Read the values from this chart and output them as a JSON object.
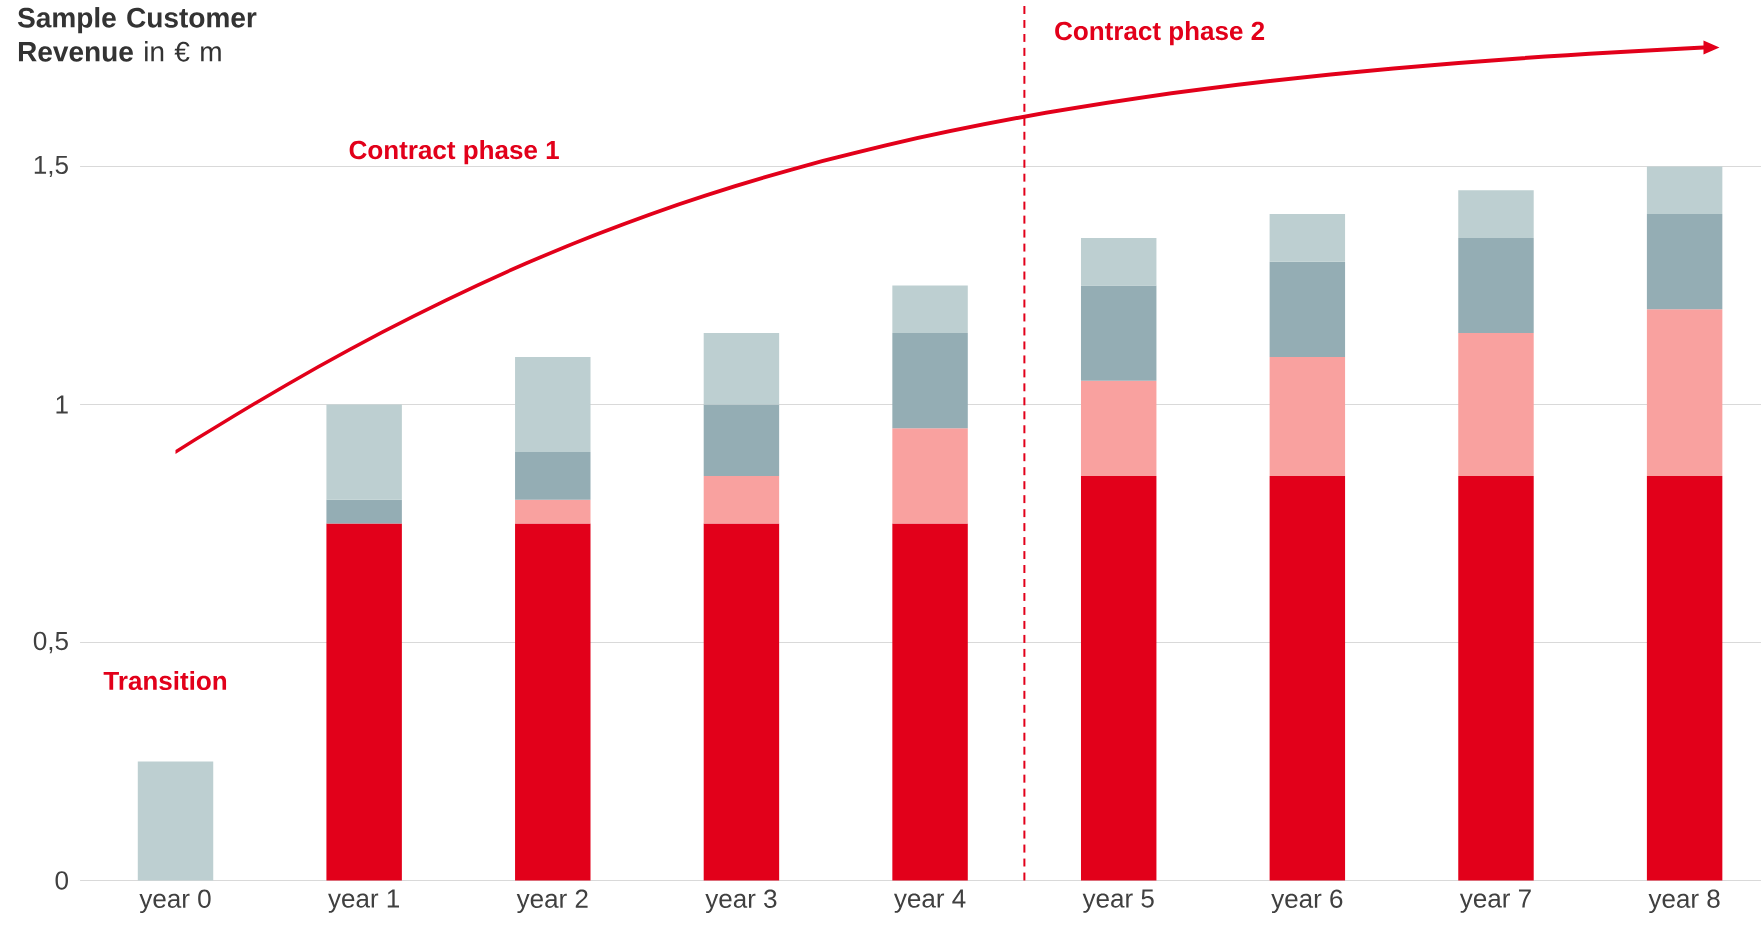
{
  "chart_data": {
    "type": "bar",
    "stacked": true,
    "title": "**Sample Customer Revenue** in € m",
    "categories": [
      "year 0",
      "year 1",
      "year 2",
      "year 3",
      "year 4",
      "year 5",
      "year 6",
      "year 7",
      "year 8"
    ],
    "series": [
      {
        "color": "#e2001a",
        "values": [
          null,
          0.75,
          0.75,
          0.75,
          0.75,
          0.85,
          0.85,
          0.85,
          0.85
        ]
      },
      {
        "color": "#f9a19f",
        "values": [
          null,
          null,
          0.05,
          0.1,
          0.2,
          0.2,
          0.25,
          0.3,
          0.35
        ]
      },
      {
        "color": "#94adb4",
        "values": [
          null,
          0.05,
          0.1,
          0.15,
          0.2,
          0.2,
          0.2,
          0.2,
          0.2
        ]
      },
      {
        "color": "#bdcfd1",
        "values": [
          0.25,
          0.2,
          0.2,
          0.15,
          0.1,
          0.1,
          0.1,
          0.1,
          0.1
        ]
      }
    ],
    "ylim": [
      0,
      1.5
    ],
    "yticks": [
      0,
      {
        "value": 0.5,
        "label": "0,5"
      },
      1,
      {
        "value": 1.5,
        "label": "1,5"
      }
    ],
    "grid": "y",
    "annotations": [
      "Transition",
      "Contract phase 1",
      "Contract phase 2"
    ]
  }
}
